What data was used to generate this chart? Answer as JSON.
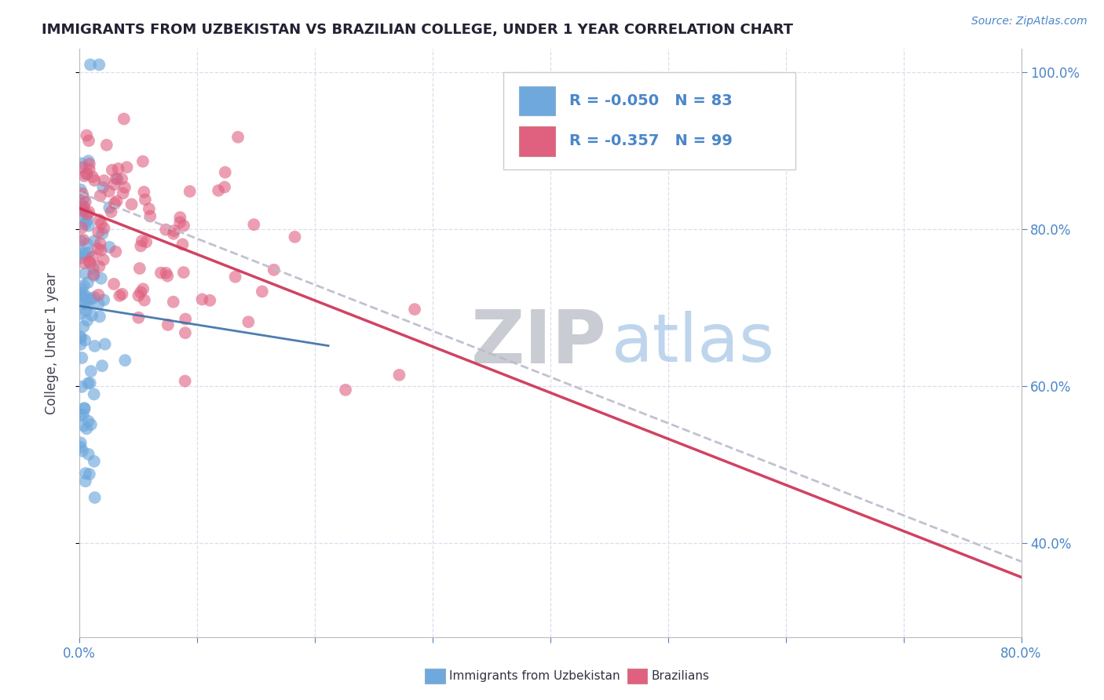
{
  "title": "IMMIGRANTS FROM UZBEKISTAN VS BRAZILIAN COLLEGE, UNDER 1 YEAR CORRELATION CHART",
  "source": "Source: ZipAtlas.com",
  "ylabel": "College, Under 1 year",
  "xlim": [
    0.0,
    0.8
  ],
  "ylim": [
    0.28,
    1.03
  ],
  "xticks": [
    0.0,
    0.1,
    0.2,
    0.3,
    0.4,
    0.5,
    0.6,
    0.7,
    0.8
  ],
  "xticklabels": [
    "0.0%",
    "",
    "",
    "",
    "",
    "",
    "",
    "",
    "80.0%"
  ],
  "yticks_right": [
    0.4,
    0.6,
    0.8,
    1.0
  ],
  "yticks_right_labels": [
    "40.0%",
    "60.0%",
    "80.0%",
    "100.0%"
  ],
  "legend_r1": "R = -0.050",
  "legend_n1": "N = 83",
  "legend_r2": "R = -0.357",
  "legend_n2": "N = 99",
  "blue_color": "#6fa8dc",
  "pink_color": "#e06080",
  "trend_blue_color": "#3a6fa8",
  "trend_pink_color": "#cc3355",
  "trend_gray_color": "#bbbbcc",
  "background_color": "#ffffff",
  "grid_color": "#ddddee",
  "tick_color": "#4a86c8",
  "title_color": "#222233",
  "bottom_legend_label1": "Immigrants from Uzbekistan",
  "bottom_legend_label2": "Brazilians",
  "uzbek_seed": 1234,
  "brazil_seed": 5678
}
